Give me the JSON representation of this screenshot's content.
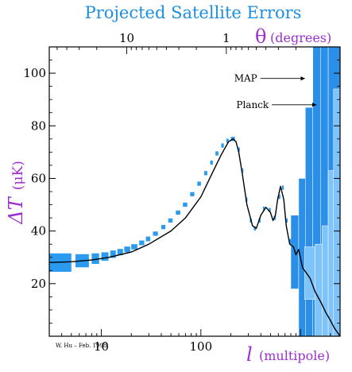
{
  "chart_data": {
    "type": "scatter",
    "title": "Projected Satellite Errors",
    "x_axis_bottom": {
      "label": "l",
      "unit": "(multipole)",
      "scale": "log",
      "ticks": [
        10,
        100
      ],
      "tick_labels": [
        "10",
        "100"
      ],
      "range": [
        3,
        2500
      ]
    },
    "x_axis_top": {
      "label": "θ",
      "unit": "(degrees)",
      "ticks": [
        10,
        1
      ],
      "tick_labels": [
        "10",
        "1"
      ]
    },
    "y_axis": {
      "label": "ΔT",
      "unit": "(μK)",
      "ticks": [
        20,
        40,
        60,
        80,
        100
      ],
      "tick_labels": [
        "20",
        "40",
        "60",
        "80",
        "100"
      ],
      "range": [
        0,
        110
      ]
    },
    "theory_curve": {
      "l": [
        3,
        5,
        8,
        12,
        20,
        30,
        50,
        70,
        100,
        130,
        160,
        190,
        210,
        225,
        240,
        260,
        290,
        330,
        360,
        400,
        450,
        500,
        530,
        560,
        590,
        630,
        680,
        720,
        780,
        850,
        900,
        960,
        1050,
        1150,
        1250,
        1400,
        1600,
        1800,
        2000,
        2200,
        2500
      ],
      "dT": [
        28,
        28.3,
        29,
        30,
        32,
        35,
        40,
        45,
        53,
        62,
        69,
        74,
        75,
        74,
        70,
        62,
        50,
        42,
        41,
        46,
        49,
        47,
        44,
        46,
        52,
        57,
        52,
        42,
        35,
        34,
        31,
        33,
        26,
        24,
        22,
        17,
        13,
        9,
        6,
        3,
        0
      ]
    },
    "error_boxes": [
      {
        "l_min": 3,
        "l_max": 5,
        "dT": 28,
        "err": 3.5
      },
      {
        "l_min": 5.5,
        "l_max": 7.5,
        "dT": 28.7,
        "err": 2.5
      },
      {
        "l_min": 8,
        "l_max": 9.5,
        "dT": 29.5,
        "err": 2
      },
      {
        "l_min": 10,
        "l_max": 11.8,
        "dT": 30.3,
        "err": 1.6
      },
      {
        "l_min": 12.3,
        "l_max": 14,
        "dT": 31.2,
        "err": 1.4
      },
      {
        "l_min": 14.5,
        "l_max": 16.5,
        "dT": 32,
        "err": 1.2
      },
      {
        "l_min": 17,
        "l_max": 19.5,
        "dT": 33,
        "err": 1.1
      },
      {
        "l_min": 20,
        "l_max": 23,
        "dT": 34,
        "err": 1
      },
      {
        "l_min": 24,
        "l_max": 27,
        "dT": 35.5,
        "err": 0.9
      },
      {
        "l_min": 28,
        "l_max": 31,
        "dT": 37,
        "err": 0.9
      },
      {
        "l_min": 33,
        "l_max": 37,
        "dT": 39,
        "err": 0.8
      },
      {
        "l_min": 40,
        "l_max": 44,
        "dT": 41.5,
        "err": 0.8
      },
      {
        "l_min": 47,
        "l_max": 52,
        "dT": 44,
        "err": 0.8
      },
      {
        "l_min": 56,
        "l_max": 62,
        "dT": 47,
        "err": 0.8
      },
      {
        "l_min": 66,
        "l_max": 73,
        "dT": 50,
        "err": 0.8
      },
      {
        "l_min": 78,
        "l_max": 86,
        "dT": 54,
        "err": 0.8
      },
      {
        "l_min": 92,
        "l_max": 100,
        "dT": 58,
        "err": 0.8
      },
      {
        "l_min": 108,
        "l_max": 116,
        "dT": 62,
        "err": 0.8
      },
      {
        "l_min": 124,
        "l_max": 132,
        "dT": 66,
        "err": 0.8
      },
      {
        "l_min": 140,
        "l_max": 150,
        "dT": 69.5,
        "err": 0.8
      },
      {
        "l_min": 160,
        "l_max": 170,
        "dT": 72.5,
        "err": 0.8
      },
      {
        "l_min": 180,
        "l_max": 190,
        "dT": 74.3,
        "err": 0.8
      },
      {
        "l_min": 200,
        "l_max": 220,
        "dT": 75,
        "err": 0.8
      },
      {
        "l_min": 235,
        "l_max": 245,
        "dT": 71,
        "err": 0.8
      },
      {
        "l_min": 255,
        "l_max": 265,
        "dT": 63,
        "err": 0.8
      },
      {
        "l_min": 280,
        "l_max": 290,
        "dT": 52,
        "err": 0.8
      },
      {
        "l_min": 310,
        "l_max": 320,
        "dT": 44,
        "err": 0.8
      },
      {
        "l_min": 340,
        "l_max": 350,
        "dT": 41,
        "err": 0.8
      },
      {
        "l_min": 380,
        "l_max": 390,
        "dT": 44,
        "err": 0.8
      },
      {
        "l_min": 420,
        "l_max": 430,
        "dT": 48.5,
        "err": 0.8
      },
      {
        "l_min": 480,
        "l_max": 490,
        "dT": 48,
        "err": 0.8
      },
      {
        "l_min": 540,
        "l_max": 550,
        "dT": 45,
        "err": 0.8
      },
      {
        "l_min": 600,
        "l_max": 610,
        "dT": 53,
        "err": 0.8
      },
      {
        "l_min": 650,
        "l_max": 660,
        "dT": 56.5,
        "err": 0.8
      },
      {
        "l_min": 710,
        "l_max": 725,
        "dT": 44,
        "err": 0.8
      },
      {
        "l_min": 770,
        "l_max": 790,
        "dT": 36,
        "err": 1
      },
      {
        "l_min": 840,
        "l_max": 860,
        "dT": 34,
        "err": 1.5
      }
    ],
    "map_bands": [
      {
        "l_min": 800,
        "l_max": 960,
        "dT": 32,
        "err": 14
      },
      {
        "l_min": 960,
        "l_max": 1120,
        "dT": 30,
        "err": 30
      },
      {
        "l_min": 1120,
        "l_max": 1330,
        "dT": 27,
        "err": 60
      },
      {
        "l_min": 1330,
        "l_max": 1600,
        "dT": 25,
        "err": 100
      },
      {
        "l_min": 1600,
        "l_max": 1900,
        "dT": 15,
        "err": 200
      },
      {
        "l_min": 1900,
        "l_max": 2500,
        "dT": 8,
        "err": 300
      }
    ],
    "planck_bands": [
      {
        "l_min": 1100,
        "l_max": 1400,
        "dT": 24,
        "err": 10
      },
      {
        "l_min": 1400,
        "l_max": 1650,
        "dT": 17,
        "err": 18
      },
      {
        "l_min": 1650,
        "l_max": 1900,
        "dT": 12,
        "err": 30
      },
      {
        "l_min": 1900,
        "l_max": 2150,
        "dT": 8,
        "err": 55
      },
      {
        "l_min": 2150,
        "l_max": 2500,
        "dT": 4,
        "err": 90
      }
    ],
    "annotations": [
      {
        "text": "MAP",
        "target_l": 1150,
        "target_dT": 98
      },
      {
        "text": "Planck",
        "target_l": 1500,
        "target_dT": 88
      }
    ],
    "credit": "W. Hu – Feb. 1998",
    "colors": {
      "title": "#1e8fe0",
      "axis_label": "#9b2fd0",
      "box": "#2b9bf0",
      "map": "#2b8fe8",
      "planck": "#7fc3fb",
      "curve": "#000000"
    }
  }
}
